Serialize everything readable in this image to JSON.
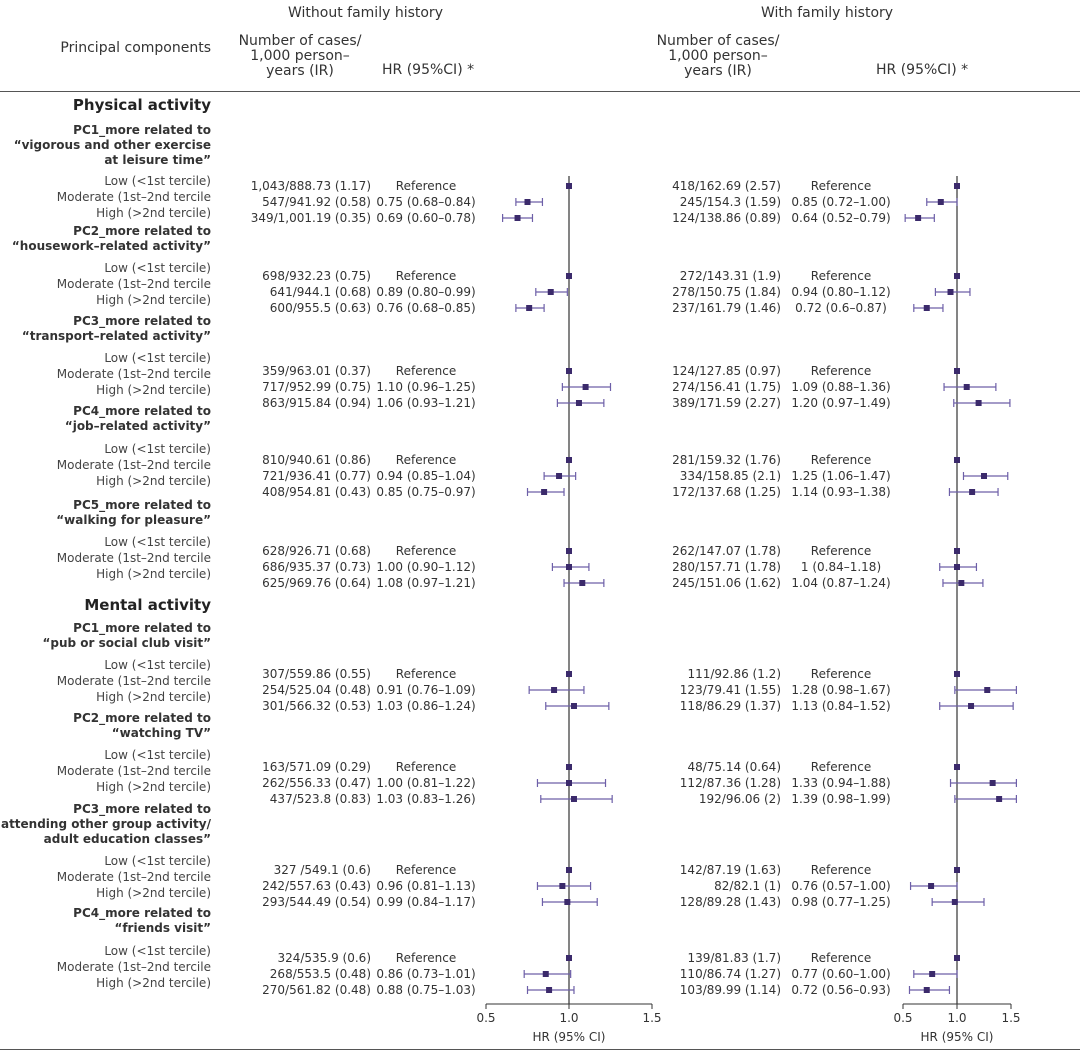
{
  "header": {
    "group_left": "Without family history",
    "group_right": "With family history",
    "principal_components": "Principal components",
    "cases_line1": "Number of cases/",
    "cases_line2": "1,000 person–",
    "cases_line3": "years (IR)",
    "hr_header": "HR (95%CI) *"
  },
  "axis": {
    "label": "HR (95% CI)",
    "left_ticks": [
      "0.5",
      "1.0",
      "1.5"
    ],
    "right_ticks": [
      "0.5",
      "1.0",
      "1.5"
    ]
  },
  "colors": {
    "marker": "#3b2a6b",
    "ci_line": "#6d5fa8",
    "ref_line": "#333333"
  },
  "sections": [
    {
      "title": "Physical activity",
      "y": 105
    },
    {
      "title": "Mental activity",
      "y": 605
    }
  ],
  "blocks": [
    {
      "pc_lines": [
        "PC1_more related to",
        "“vigorous and other exercise",
        "at leisure time”"
      ],
      "pc_y": 130,
      "label_y": 181,
      "data_y": 186,
      "labels": [
        "Low (<1st tercile)",
        "Moderate (1st–2nd tercile",
        "High (>2nd tercile)"
      ],
      "left_cases": [
        "1,043/888.73 (1.17)",
        "547/941.92 (0.58)",
        "349/1,001.19 (0.35)"
      ],
      "left_hr": [
        "Reference",
        "0.75 (0.68–0.84)",
        "0.69 (0.60–0.78)"
      ],
      "right_cases": [
        "418/162.69 (2.57)",
        "245/154.3 (1.59)",
        "124/138.86 (0.89)"
      ],
      "right_hr": [
        "Reference",
        "0.85 (0.72–1.00)",
        "0.64 (0.52–0.79)"
      ]
    },
    {
      "pc_lines": [
        "PC2_more related to",
        "“housework–related activity”"
      ],
      "pc_y": 231,
      "label_y": 268,
      "data_y": 276,
      "labels": [
        "Low (<1st tercile)",
        "Moderate (1st–2nd tercile",
        "High (>2nd tercile)"
      ],
      "left_cases": [
        "698/932.23 (0.75)",
        "641/944.1 (0.68)",
        "600/955.5 (0.63)"
      ],
      "left_hr": [
        "Reference",
        "0.89 (0.80–0.99)",
        "0.76 (0.68–0.85)"
      ],
      "right_cases": [
        "272/143.31 (1.9)",
        "278/150.75 (1.84)",
        "237/161.79 (1.46)"
      ],
      "right_hr": [
        "Reference",
        "0.94 (0.80–1.12)",
        "0.72 (0.6–0.87)"
      ]
    },
    {
      "pc_lines": [
        "PC3_more related to",
        "“transport–related activity”"
      ],
      "pc_y": 321,
      "label_y": 358,
      "data_y": 371,
      "labels": [
        "Low (<1st tercile)",
        "Moderate (1st–2nd tercile",
        "High (>2nd tercile)"
      ],
      "left_cases": [
        "359/963.01 (0.37)",
        "717/952.99 (0.75)",
        "863/915.84 (0.94)"
      ],
      "left_hr": [
        "Reference",
        "1.10 (0.96–1.25)",
        "1.06 (0.93–1.21)"
      ],
      "right_cases": [
        "124/127.85 (0.97)",
        "274/156.41 (1.75)",
        "389/171.59 (2.27)"
      ],
      "right_hr": [
        "Reference",
        "1.09 (0.88–1.36)",
        "1.20 (0.97–1.49)"
      ]
    },
    {
      "pc_lines": [
        "PC4_more related to",
        "“job–related activity”"
      ],
      "pc_y": 411,
      "label_y": 449,
      "data_y": 460,
      "labels": [
        "Low (<1st tercile)",
        "Moderate (1st–2nd tercile",
        "High (>2nd tercile)"
      ],
      "left_cases": [
        "810/940.61 (0.86)",
        "721/936.41 (0.77)",
        "408/954.81 (0.43)"
      ],
      "left_hr": [
        "Reference",
        "0.94 (0.85–1.04)",
        "0.85 (0.75–0.97)"
      ],
      "right_cases": [
        "281/159.32 (1.76)",
        "334/158.85 (2.1)",
        "172/137.68 (1.25)"
      ],
      "right_hr": [
        "Reference",
        "1.25 (1.06–1.47)",
        "1.14 (0.93–1.38)"
      ]
    },
    {
      "pc_lines": [
        "PC5_more related to",
        "“walking for pleasure”"
      ],
      "pc_y": 505,
      "label_y": 542,
      "data_y": 551,
      "labels": [
        "Low (<1st tercile)",
        "Moderate (1st–2nd tercile",
        "High (>2nd tercile)"
      ],
      "left_cases": [
        "628/926.71 (0.68)",
        "686/935.37 (0.73)",
        "625/969.76 (0.64)"
      ],
      "left_hr": [
        "Reference",
        "1.00 (0.90–1.12)",
        "1.08 (0.97–1.21)"
      ],
      "right_cases": [
        "262/147.07 (1.78)",
        "280/157.71 (1.78)",
        "245/151.06 (1.62)"
      ],
      "right_hr": [
        "Reference",
        "1 (0.84–1.18)",
        "1.04 (0.87–1.24)"
      ]
    },
    {
      "pc_lines": [
        "PC1_more related to",
        "“pub or social club visit”"
      ],
      "pc_y": 628,
      "label_y": 665,
      "data_y": 674,
      "labels": [
        "Low (<1st tercile)",
        "Moderate (1st–2nd tercile",
        "High (>2nd tercile)"
      ],
      "left_cases": [
        "307/559.86 (0.55)",
        "254/525.04 (0.48)",
        "301/566.32 (0.53)"
      ],
      "left_hr": [
        "Reference",
        "0.91 (0.76–1.09)",
        "1.03 (0.86–1.24)"
      ],
      "right_cases": [
        "111/92.86 (1.2)",
        "123/79.41 (1.55)",
        "118/86.29 (1.37)"
      ],
      "right_hr": [
        "Reference",
        "1.28 (0.98–1.67)",
        "1.13 (0.84–1.52)"
      ]
    },
    {
      "pc_lines": [
        "PC2_more related to",
        "“watching TV”"
      ],
      "pc_y": 718,
      "label_y": 755,
      "data_y": 767,
      "labels": [
        "Low (<1st tercile)",
        "Moderate (1st–2nd tercile",
        "High (>2nd tercile)"
      ],
      "left_cases": [
        "163/571.09 (0.29)",
        "262/556.33 (0.47)",
        "437/523.8 (0.83)"
      ],
      "left_hr": [
        "Reference",
        "1.00 (0.81–1.22)",
        "1.03 (0.83–1.26)"
      ],
      "right_cases": [
        "48/75.14 (0.64)",
        "112/87.36 (1.28)",
        "192/96.06 (2)"
      ],
      "right_hr": [
        "Reference",
        "1.33 (0.94–1.88)",
        "1.39 (0.98–1.99)"
      ]
    },
    {
      "pc_lines": [
        "PC3_more related to",
        "“attending other group activity/",
        "adult education classes”"
      ],
      "pc_y": 809,
      "label_y": 861,
      "data_y": 870,
      "labels": [
        "Low (<1st tercile)",
        "Moderate (1st–2nd tercile",
        "High (>2nd tercile)"
      ],
      "left_cases": [
        "327 /549.1 (0.6)",
        "242/557.63 (0.43)",
        "293/544.49 (0.54)"
      ],
      "left_hr": [
        "Reference",
        "0.96 (0.81–1.13)",
        "0.99 (0.84–1.17)"
      ],
      "right_cases": [
        "142/87.19 (1.63)",
        "82/82.1 (1)",
        "128/89.28 (1.43)"
      ],
      "right_hr": [
        "Reference",
        "0.76 (0.57–1.00)",
        "0.98 (0.77–1.25)"
      ]
    },
    {
      "pc_lines": [
        "PC4_more related to",
        "“friends visit”"
      ],
      "pc_y": 913,
      "label_y": 951,
      "data_y": 958,
      "labels": [
        "Low (<1st tercile)",
        "Moderate (1st–2nd tercile",
        "High (>2nd tercile)"
      ],
      "left_cases": [
        "324/535.9 (0.6)",
        "268/553.5 (0.48)",
        "270/561.82 (0.48)"
      ],
      "left_hr": [
        "Reference",
        "0.86 (0.73–1.01)",
        "0.88 (0.75–1.03)"
      ],
      "right_cases": [
        "139/81.83 (1.7)",
        "110/86.74 (1.27)",
        "103/89.99 (1.14)"
      ],
      "right_hr": [
        "Reference",
        "0.77 (0.60–1.00)",
        "0.72 (0.56–0.93)"
      ]
    }
  ],
  "chart_data": [
    {
      "type": "scatter",
      "title": "Without family history",
      "xlabel": "HR (95% CI)",
      "xlim": [
        0.5,
        1.5
      ],
      "reference_line": 1.0,
      "points": [
        {
          "hr": 1.0,
          "lo": 1.0,
          "hi": 1.0
        },
        {
          "hr": 0.75,
          "lo": 0.68,
          "hi": 0.84
        },
        {
          "hr": 0.69,
          "lo": 0.6,
          "hi": 0.78
        },
        {
          "hr": 1.0,
          "lo": 1.0,
          "hi": 1.0
        },
        {
          "hr": 0.89,
          "lo": 0.8,
          "hi": 0.99
        },
        {
          "hr": 0.76,
          "lo": 0.68,
          "hi": 0.85
        },
        {
          "hr": 1.0,
          "lo": 1.0,
          "hi": 1.0
        },
        {
          "hr": 1.1,
          "lo": 0.96,
          "hi": 1.25
        },
        {
          "hr": 1.06,
          "lo": 0.93,
          "hi": 1.21
        },
        {
          "hr": 1.0,
          "lo": 1.0,
          "hi": 1.0
        },
        {
          "hr": 0.94,
          "lo": 0.85,
          "hi": 1.04
        },
        {
          "hr": 0.85,
          "lo": 0.75,
          "hi": 0.97
        },
        {
          "hr": 1.0,
          "lo": 1.0,
          "hi": 1.0
        },
        {
          "hr": 1.0,
          "lo": 0.9,
          "hi": 1.12
        },
        {
          "hr": 1.08,
          "lo": 0.97,
          "hi": 1.21
        },
        {
          "hr": 1.0,
          "lo": 1.0,
          "hi": 1.0
        },
        {
          "hr": 0.91,
          "lo": 0.76,
          "hi": 1.09
        },
        {
          "hr": 1.03,
          "lo": 0.86,
          "hi": 1.24
        },
        {
          "hr": 1.0,
          "lo": 1.0,
          "hi": 1.0
        },
        {
          "hr": 1.0,
          "lo": 0.81,
          "hi": 1.22
        },
        {
          "hr": 1.03,
          "lo": 0.83,
          "hi": 1.26
        },
        {
          "hr": 1.0,
          "lo": 1.0,
          "hi": 1.0
        },
        {
          "hr": 0.96,
          "lo": 0.81,
          "hi": 1.13
        },
        {
          "hr": 0.99,
          "lo": 0.84,
          "hi": 1.17
        },
        {
          "hr": 1.0,
          "lo": 1.0,
          "hi": 1.0
        },
        {
          "hr": 0.86,
          "lo": 0.73,
          "hi": 1.01
        },
        {
          "hr": 0.88,
          "lo": 0.75,
          "hi": 1.03
        }
      ]
    },
    {
      "type": "scatter",
      "title": "With family history",
      "xlabel": "HR (95% CI)",
      "xlim": [
        0.5,
        1.5
      ],
      "reference_line": 1.0,
      "points": [
        {
          "hr": 1.0,
          "lo": 1.0,
          "hi": 1.0
        },
        {
          "hr": 0.85,
          "lo": 0.72,
          "hi": 1.0
        },
        {
          "hr": 0.64,
          "lo": 0.52,
          "hi": 0.79
        },
        {
          "hr": 1.0,
          "lo": 1.0,
          "hi": 1.0
        },
        {
          "hr": 0.94,
          "lo": 0.8,
          "hi": 1.12
        },
        {
          "hr": 0.72,
          "lo": 0.6,
          "hi": 0.87
        },
        {
          "hr": 1.0,
          "lo": 1.0,
          "hi": 1.0
        },
        {
          "hr": 1.09,
          "lo": 0.88,
          "hi": 1.36
        },
        {
          "hr": 1.2,
          "lo": 0.97,
          "hi": 1.49
        },
        {
          "hr": 1.0,
          "lo": 1.0,
          "hi": 1.0
        },
        {
          "hr": 1.25,
          "lo": 1.06,
          "hi": 1.47
        },
        {
          "hr": 1.14,
          "lo": 0.93,
          "hi": 1.38
        },
        {
          "hr": 1.0,
          "lo": 1.0,
          "hi": 1.0
        },
        {
          "hr": 1.0,
          "lo": 0.84,
          "hi": 1.18
        },
        {
          "hr": 1.04,
          "lo": 0.87,
          "hi": 1.24
        },
        {
          "hr": 1.0,
          "lo": 1.0,
          "hi": 1.0
        },
        {
          "hr": 1.28,
          "lo": 0.98,
          "hi": 1.67
        },
        {
          "hr": 1.13,
          "lo": 0.84,
          "hi": 1.52
        },
        {
          "hr": 1.0,
          "lo": 1.0,
          "hi": 1.0
        },
        {
          "hr": 1.33,
          "lo": 0.94,
          "hi": 1.88
        },
        {
          "hr": 1.39,
          "lo": 0.98,
          "hi": 1.99
        },
        {
          "hr": 1.0,
          "lo": 1.0,
          "hi": 1.0
        },
        {
          "hr": 0.76,
          "lo": 0.57,
          "hi": 1.0
        },
        {
          "hr": 0.98,
          "lo": 0.77,
          "hi": 1.25
        },
        {
          "hr": 1.0,
          "lo": 1.0,
          "hi": 1.0
        },
        {
          "hr": 0.77,
          "lo": 0.6,
          "hi": 1.0
        },
        {
          "hr": 0.72,
          "lo": 0.56,
          "hi": 0.93
        }
      ]
    }
  ]
}
